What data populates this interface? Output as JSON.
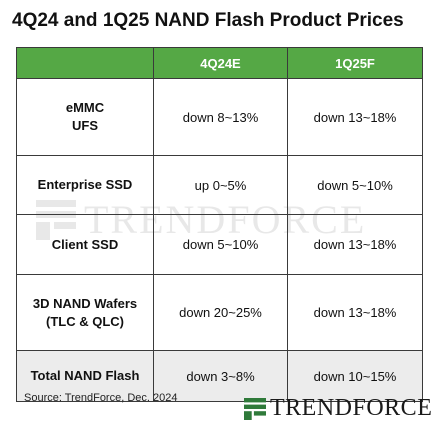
{
  "title": "4Q24 and 1Q25 NAND Flash Product Prices",
  "table": {
    "headers": [
      "",
      "4Q24E",
      "1Q25F"
    ],
    "rows": [
      {
        "label_lines": [
          "eMMC",
          "UFS"
        ],
        "q4": "down 8~13%",
        "q1": "down 13~18%"
      },
      {
        "label_lines": [
          "Enterprise SSD"
        ],
        "q4": "up 0~5%",
        "q1": "down 5~10%"
      },
      {
        "label_lines": [
          "Client SSD"
        ],
        "q4": "down 5~10%",
        "q1": "down 13~18%"
      },
      {
        "label_lines": [
          "3D NAND Wafers",
          "(TLC & QLC)"
        ],
        "q4": "down 20~25%",
        "q1": "down 13~18%"
      },
      {
        "label_lines": [
          "Total NAND Flash"
        ],
        "q4": "down 3~8%",
        "q1": "down 10~15%"
      }
    ]
  },
  "header_color": "#55a845",
  "total_row_color": "#ececec",
  "source": "Source: TrendForce, Dec. 2024",
  "brand": "TrendForce",
  "watermark": "TrendForce"
}
